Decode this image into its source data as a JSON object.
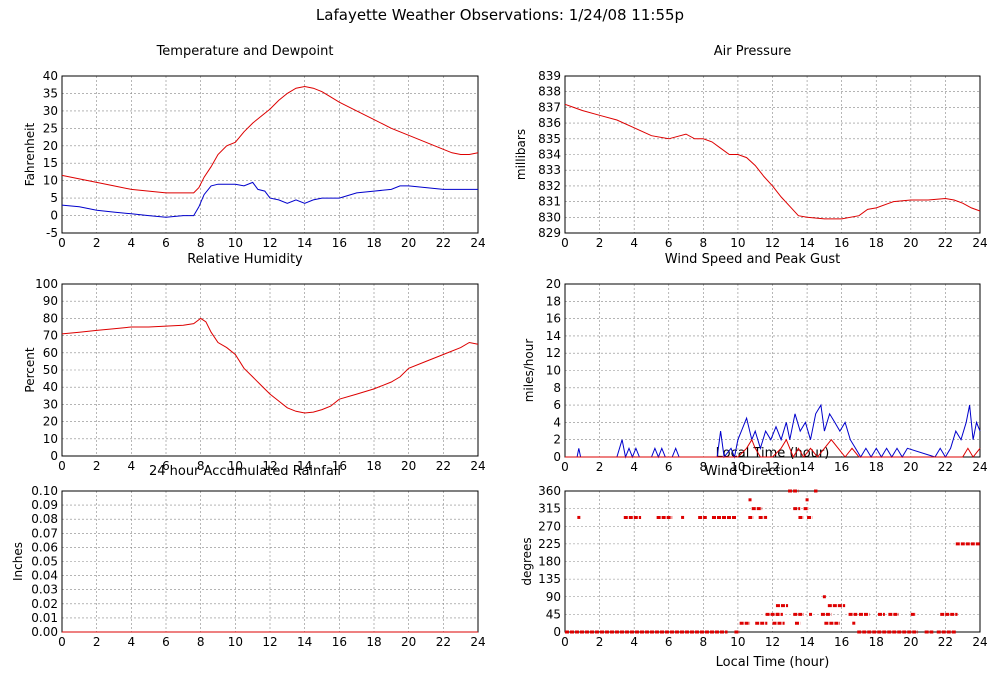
{
  "page_title": "Lafayette Weather Observations: 1/24/08 11:55p",
  "chart_data": [
    {
      "id": "temp",
      "type": "line",
      "title": "Temperature and Dewpoint",
      "xlabel": "",
      "ylabel": "Fahrenheit",
      "xlim": [
        0,
        24
      ],
      "ylim": [
        -5,
        40
      ],
      "xticks": [
        0,
        2,
        4,
        6,
        8,
        10,
        12,
        14,
        16,
        18,
        20,
        22,
        24
      ],
      "yticks": [
        -5,
        0,
        5,
        10,
        15,
        20,
        25,
        30,
        35,
        40
      ],
      "grid": true,
      "series": [
        {
          "color": "#dd0000",
          "x": [
            0,
            1,
            2,
            3,
            4,
            5,
            6,
            7,
            7.6,
            7.9,
            8.2,
            8.6,
            9,
            9.5,
            10,
            10.5,
            11,
            11.5,
            12,
            12.5,
            13,
            13.5,
            14,
            14.5,
            15,
            15.5,
            16,
            17,
            18,
            19,
            20,
            21,
            22,
            22.5,
            23,
            23.5,
            24
          ],
          "y": [
            11.5,
            10.5,
            9.5,
            8.5,
            7.5,
            7,
            6.5,
            6.5,
            6.5,
            8,
            11,
            14,
            17.5,
            20,
            21,
            24,
            26.5,
            28.5,
            30.5,
            33,
            35,
            36.5,
            37,
            36.5,
            35.5,
            34,
            32.5,
            30,
            27.5,
            25,
            23,
            21,
            19,
            18,
            17.5,
            17.5,
            18
          ]
        },
        {
          "color": "#0000cc",
          "x": [
            0,
            1,
            2,
            3,
            4,
            5,
            6,
            7,
            7.6,
            7.9,
            8.2,
            8.6,
            9,
            9.5,
            10,
            10.5,
            11,
            11.3,
            11.7,
            12,
            12.5,
            13,
            13.5,
            14,
            14.5,
            15,
            16,
            17,
            18,
            19,
            19.5,
            20,
            21,
            22,
            23,
            24
          ],
          "y": [
            3,
            2.5,
            1.5,
            1,
            0.5,
            0,
            -0.5,
            0,
            0,
            2.5,
            6,
            8.5,
            9,
            9,
            9,
            8.5,
            9.5,
            7.5,
            7,
            5,
            4.5,
            3.5,
            4.5,
            3.5,
            4.5,
            5,
            5,
            6.5,
            7,
            7.5,
            8.5,
            8.5,
            8,
            7.5,
            7.5,
            7.5
          ]
        }
      ]
    },
    {
      "id": "pressure",
      "type": "line",
      "title": "Air Pressure",
      "xlabel": "",
      "ylabel": "millibars",
      "xlim": [
        0,
        24
      ],
      "ylim": [
        829,
        839
      ],
      "xticks": [
        0,
        2,
        4,
        6,
        8,
        10,
        12,
        14,
        16,
        18,
        20,
        22,
        24
      ],
      "yticks": [
        829,
        830,
        831,
        832,
        833,
        834,
        835,
        836,
        837,
        838,
        839
      ],
      "grid": true,
      "series": [
        {
          "color": "#dd0000",
          "x": [
            0,
            0.5,
            1,
            2,
            3,
            4,
            5,
            6,
            7,
            7.5,
            8,
            8.5,
            9,
            9.5,
            10,
            10.5,
            11,
            11.5,
            12,
            12.5,
            13,
            13.5,
            14,
            15,
            16,
            17,
            17.5,
            18,
            19,
            20,
            21,
            22,
            22.5,
            23,
            23.5,
            24
          ],
          "y": [
            837.2,
            837,
            836.8,
            836.5,
            836.2,
            835.7,
            835.2,
            835,
            835.3,
            835,
            835,
            834.8,
            834.4,
            834,
            834,
            833.8,
            833.3,
            832.6,
            832,
            831.3,
            830.7,
            830.1,
            830,
            829.9,
            829.9,
            830.1,
            830.5,
            830.6,
            831,
            831.1,
            831.1,
            831.2,
            831.1,
            830.9,
            830.6,
            830.4
          ]
        }
      ]
    },
    {
      "id": "humidity",
      "type": "line",
      "title": "Relative Humidity",
      "xlabel": "",
      "ylabel": "Percent",
      "xlim": [
        0,
        24
      ],
      "ylim": [
        0,
        100
      ],
      "xticks": [
        0,
        2,
        4,
        6,
        8,
        10,
        12,
        14,
        16,
        18,
        20,
        22,
        24
      ],
      "yticks": [
        0,
        10,
        20,
        30,
        40,
        50,
        60,
        70,
        80,
        90,
        100
      ],
      "grid": true,
      "series": [
        {
          "color": "#dd0000",
          "x": [
            0,
            1,
            2,
            3,
            4,
            5,
            6,
            7,
            7.6,
            8,
            8.3,
            8.6,
            9,
            9.5,
            10,
            10.5,
            11,
            11.5,
            12,
            12.5,
            13,
            13.5,
            14,
            14.5,
            15,
            15.5,
            16,
            17,
            18,
            19,
            19.5,
            20,
            21,
            22,
            23,
            23.5,
            24
          ],
          "y": [
            71,
            72,
            73,
            74,
            75,
            75,
            75.5,
            76,
            77,
            80,
            78,
            72,
            66,
            63,
            59,
            51,
            46,
            41,
            36,
            32,
            28,
            26,
            25,
            25.5,
            27,
            29,
            33,
            36,
            39,
            43,
            46,
            51,
            55,
            59,
            63,
            66,
            65
          ]
        }
      ]
    },
    {
      "id": "wind",
      "type": "line",
      "title": "Wind Speed and Peak Gust",
      "xlabel": "Local Time (hour)",
      "ylabel": "miles/hour",
      "xlim": [
        0,
        24
      ],
      "ylim": [
        0,
        20
      ],
      "xticks": [
        0,
        2,
        4,
        6,
        8,
        10,
        12,
        14,
        16,
        18,
        20,
        22,
        24
      ],
      "yticks": [
        0,
        2,
        4,
        6,
        8,
        10,
        12,
        14,
        16,
        18,
        20
      ],
      "grid": true,
      "series": [
        {
          "color": "#0000cc",
          "x": [
            0,
            0.7,
            0.8,
            0.9,
            3,
            3.3,
            3.5,
            3.7,
            3.9,
            4.1,
            4.3,
            5,
            5.2,
            5.4,
            5.6,
            5.8,
            6.2,
            6.4,
            6.6,
            8.8,
            9,
            9.2,
            9.6,
            9.8,
            10,
            10.2,
            10.5,
            10.8,
            11,
            11.3,
            11.6,
            11.9,
            12.2,
            12.5,
            12.8,
            13,
            13.3,
            13.6,
            13.9,
            14.2,
            14.5,
            14.8,
            15,
            15.3,
            15.6,
            15.9,
            16.2,
            16.5,
            16.8,
            17.1,
            17.4,
            17.7,
            18,
            18.3,
            18.6,
            18.9,
            19.2,
            19.5,
            19.8,
            21.4,
            21.7,
            22,
            22.3,
            22.6,
            22.9,
            23.2,
            23.4,
            23.6,
            23.8,
            24
          ],
          "y": [
            0,
            0,
            1,
            0,
            0,
            2,
            0,
            1,
            0,
            1,
            0,
            0,
            1,
            0,
            1,
            0,
            0,
            1,
            0,
            0,
            3,
            0,
            1,
            0,
            2,
            3,
            4.5,
            2,
            3,
            1,
            3,
            2,
            3.5,
            2,
            4,
            2,
            5,
            3,
            4,
            2,
            5,
            6,
            3,
            5,
            4,
            3,
            4,
            2,
            1,
            0,
            1,
            0,
            1,
            0,
            1,
            0,
            1,
            0,
            1,
            0,
            1,
            0,
            1,
            3,
            2,
            4,
            6,
            2,
            4,
            3
          ]
        },
        {
          "color": "#dd0000",
          "x": [
            0,
            10,
            10.5,
            10.8,
            11,
            11.3,
            12,
            12.5,
            12.8,
            13.2,
            13.5,
            13.8,
            14.2,
            14.6,
            15,
            15.4,
            15.8,
            16.2,
            16.6,
            17,
            23,
            23.3,
            23.6,
            24
          ],
          "y": [
            0,
            0,
            1,
            2,
            1,
            0,
            0,
            1,
            2,
            0,
            1,
            0,
            1,
            0,
            1,
            2,
            1,
            0,
            1,
            0,
            0,
            1,
            0,
            1
          ]
        }
      ]
    },
    {
      "id": "rain",
      "type": "line",
      "title": "24 hour Accumulated Rainfall",
      "xlabel": "",
      "ylabel": "Inches",
      "xlim": [
        0,
        24
      ],
      "ylim": [
        0,
        0.1
      ],
      "xticks": [
        0,
        2,
        4,
        6,
        8,
        10,
        12,
        14,
        16,
        18,
        20,
        22,
        24
      ],
      "yticks": [
        "0.00",
        "0.01",
        "0.02",
        "0.03",
        "0.04",
        "0.05",
        "0.06",
        "0.07",
        "0.08",
        "0.09",
        "0.10"
      ],
      "grid": true,
      "series": [
        {
          "color": "#dd0000",
          "x": [
            0,
            24
          ],
          "y": [
            0,
            0
          ]
        }
      ]
    },
    {
      "id": "direction",
      "type": "scatter",
      "title": "Wind Direction",
      "xlabel": "Local Time (hour)",
      "ylabel": "degrees",
      "xlim": [
        0,
        24
      ],
      "ylim": [
        0,
        360
      ],
      "xticks": [
        0,
        2,
        4,
        6,
        8,
        10,
        12,
        14,
        16,
        18,
        20,
        22,
        24
      ],
      "yticks": [
        0,
        45,
        90,
        135,
        180,
        225,
        270,
        315,
        360
      ],
      "grid": true,
      "series": [
        {
          "color": "#dd0000",
          "segments": [
            [
              0,
              9.4,
              0
            ],
            [
              9.8,
              10.1,
              0
            ],
            [
              10.1,
              10.7,
              22.5
            ],
            [
              11,
              11.7,
              22.5
            ],
            [
              12,
              12.7,
              22.5
            ],
            [
              13.3,
              13.6,
              22.5
            ],
            [
              15,
              15.9,
              22.5
            ],
            [
              11.6,
              12.6,
              45
            ],
            [
              13.2,
              13.8,
              45
            ],
            [
              14.8,
              15.4,
              45
            ],
            [
              16.4,
              16.9,
              45
            ],
            [
              17,
              17.6,
              45
            ],
            [
              18.1,
              18.5,
              45
            ],
            [
              18.7,
              19.3,
              45
            ],
            [
              20,
              20.3,
              45
            ],
            [
              21.7,
              22.7,
              45
            ],
            [
              16.9,
              20.4,
              0
            ],
            [
              20.8,
              21.3,
              0
            ],
            [
              21.5,
              22.6,
              0
            ],
            [
              15.2,
              16.2,
              67.5
            ],
            [
              12.2,
              12.9,
              67.5
            ],
            [
              3.4,
              4.4,
              292.5
            ],
            [
              5.3,
              6.2,
              292.5
            ],
            [
              7.7,
              8.2,
              292.5
            ],
            [
              8.5,
              9.9,
              292.5
            ],
            [
              10.6,
              10.9,
              292.5
            ],
            [
              11.2,
              11.5,
              292.5
            ],
            [
              13.5,
              13.8,
              292.5
            ],
            [
              14,
              14.3,
              292.5
            ],
            [
              10.8,
              11.4,
              315
            ],
            [
              13.2,
              13.6,
              315
            ],
            [
              13.8,
              14.1,
              315
            ],
            [
              12.9,
              13.5,
              360
            ],
            [
              14.4,
              14.6,
              360
            ],
            [
              22.6,
              24,
              225
            ]
          ],
          "points": [
            [
              0.8,
              292.5
            ],
            [
              6.8,
              292.5
            ],
            [
              11.6,
              292.5
            ],
            [
              10.7,
              337.5
            ],
            [
              14,
              337.5
            ],
            [
              15,
              90
            ],
            [
              14.2,
              45
            ],
            [
              12.3,
              45
            ],
            [
              16.7,
              22.5
            ]
          ]
        }
      ]
    }
  ]
}
